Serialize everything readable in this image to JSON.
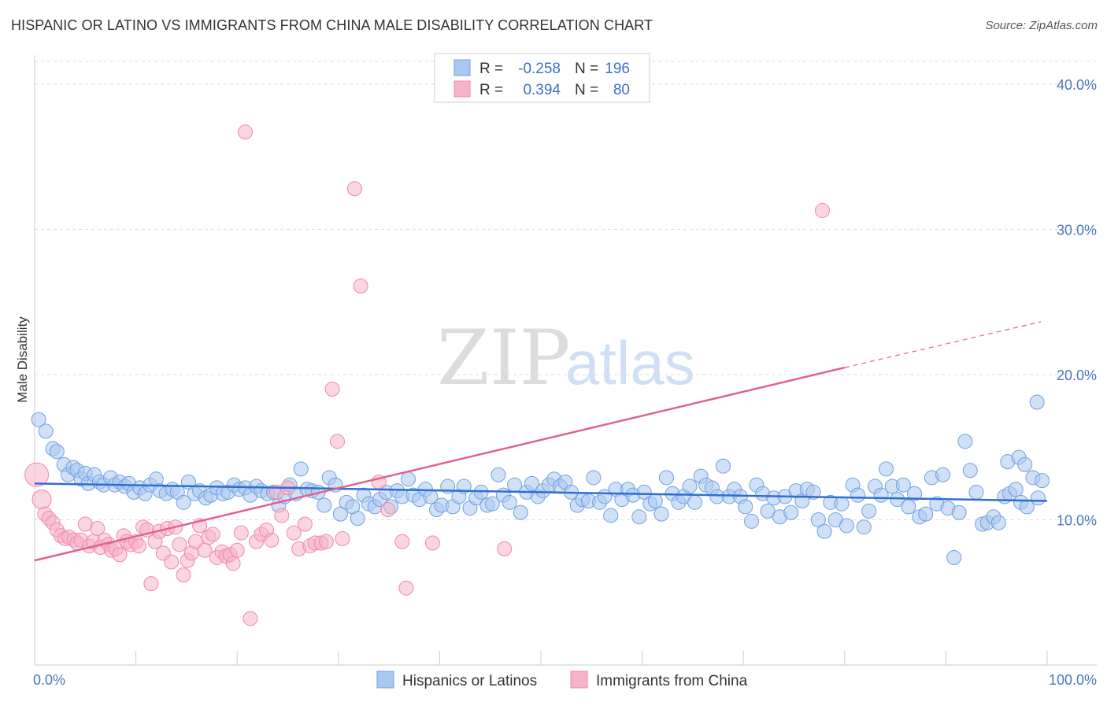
{
  "header": {
    "title": "HISPANIC OR LATINO VS IMMIGRANTS FROM CHINA MALE DISABILITY CORRELATION CHART",
    "source": "Source: ZipAtlas.com"
  },
  "watermark": {
    "zip": "ZIP",
    "atlas": "atlas"
  },
  "colors": {
    "blue": "#a9c8f0",
    "blue_edge": "#6f9fe0",
    "blue_line": "#2f6fd0",
    "pink": "#f7b3c8",
    "pink_edge": "#ee8aa8",
    "pink_line": "#e0608f",
    "grid": "#dddddd",
    "tick_text": "#4a76c2"
  },
  "chart_data": {
    "type": "scatter",
    "ylabel": "Male Disability",
    "xlim": [
      0,
      100
    ],
    "ylim": [
      0,
      42
    ],
    "y_ticks": [
      {
        "value": 10,
        "label": "10.0%"
      },
      {
        "value": 20,
        "label": "20.0%"
      },
      {
        "value": 30,
        "label": "30.0%"
      },
      {
        "value": 40,
        "label": "40.0%"
      }
    ],
    "x_tick_labels": [
      {
        "value": 0,
        "label": "0.0%"
      },
      {
        "value": 100,
        "label": "100.0%"
      }
    ],
    "x_minor_ticks": [
      0,
      10,
      20,
      30,
      40,
      50,
      60,
      70,
      80,
      90,
      100
    ],
    "legend": {
      "placement": "top-center",
      "rows": [
        {
          "r_label": "R =",
          "r_value": "-0.258",
          "n_label": "N =",
          "n_value": "196"
        },
        {
          "r_label": "R =",
          "r_value": "0.394",
          "n_label": "N =",
          "n_value": "80"
        }
      ]
    },
    "series": [
      {
        "name": "Hispanics or Latinos",
        "color": "blue",
        "trend": {
          "x1": 0,
          "y1": 12.5,
          "x2": 100,
          "y2": 11.3,
          "dashed_from": null
        },
        "points": [
          [
            0.4,
            16.9
          ],
          [
            1.1,
            16.1
          ],
          [
            1.8,
            14.9
          ],
          [
            2.2,
            14.7
          ],
          [
            2.9,
            13.8
          ],
          [
            3.3,
            13.1
          ],
          [
            3.8,
            13.6
          ],
          [
            4.2,
            13.4
          ],
          [
            4.6,
            12.8
          ],
          [
            5.0,
            13.2
          ],
          [
            5.3,
            12.5
          ],
          [
            5.9,
            13.1
          ],
          [
            6.4,
            12.6
          ],
          [
            6.8,
            12.4
          ],
          [
            7.5,
            12.9
          ],
          [
            7.9,
            12.4
          ],
          [
            8.4,
            12.6
          ],
          [
            8.9,
            12.3
          ],
          [
            9.3,
            12.5
          ],
          [
            9.8,
            11.9
          ],
          [
            10.4,
            12.2
          ],
          [
            10.9,
            11.8
          ],
          [
            11.4,
            12.4
          ],
          [
            12.0,
            12.8
          ],
          [
            12.4,
            12.0
          ],
          [
            13.0,
            11.8
          ],
          [
            13.6,
            12.1
          ],
          [
            14.1,
            11.9
          ],
          [
            14.7,
            11.2
          ],
          [
            15.2,
            12.6
          ],
          [
            15.8,
            11.8
          ],
          [
            16.3,
            12.0
          ],
          [
            16.9,
            11.5
          ],
          [
            17.4,
            11.7
          ],
          [
            18.0,
            12.2
          ],
          [
            18.6,
            11.8
          ],
          [
            19.1,
            11.9
          ],
          [
            19.7,
            12.4
          ],
          [
            20.2,
            12.1
          ],
          [
            20.8,
            12.2
          ],
          [
            21.3,
            11.7
          ],
          [
            21.9,
            12.3
          ],
          [
            22.4,
            12.0
          ],
          [
            23.0,
            11.8
          ],
          [
            23.6,
            11.9
          ],
          [
            24.1,
            11.0
          ],
          [
            24.7,
            11.6
          ],
          [
            25.2,
            12.4
          ],
          [
            25.8,
            11.8
          ],
          [
            26.3,
            13.5
          ],
          [
            26.9,
            12.1
          ],
          [
            27.4,
            12.0
          ],
          [
            28.0,
            11.9
          ],
          [
            28.6,
            11.0
          ],
          [
            29.1,
            12.9
          ],
          [
            29.7,
            12.4
          ],
          [
            30.2,
            10.4
          ],
          [
            30.8,
            11.2
          ],
          [
            31.4,
            10.9
          ],
          [
            31.9,
            10.1
          ],
          [
            32.5,
            11.7
          ],
          [
            33.0,
            11.1
          ],
          [
            33.6,
            10.9
          ],
          [
            34.1,
            11.4
          ],
          [
            34.7,
            11.9
          ],
          [
            35.2,
            10.9
          ],
          [
            35.8,
            12.0
          ],
          [
            36.3,
            11.6
          ],
          [
            36.9,
            12.8
          ],
          [
            37.4,
            11.7
          ],
          [
            38.0,
            11.4
          ],
          [
            38.6,
            12.1
          ],
          [
            39.1,
            11.6
          ],
          [
            39.7,
            10.7
          ],
          [
            40.2,
            11.0
          ],
          [
            40.8,
            12.3
          ],
          [
            41.3,
            10.9
          ],
          [
            41.9,
            11.6
          ],
          [
            42.4,
            12.3
          ],
          [
            43.0,
            10.8
          ],
          [
            43.6,
            11.5
          ],
          [
            44.1,
            11.9
          ],
          [
            44.7,
            11.0
          ],
          [
            45.2,
            11.1
          ],
          [
            45.8,
            13.1
          ],
          [
            46.3,
            11.7
          ],
          [
            46.9,
            11.2
          ],
          [
            47.4,
            12.4
          ],
          [
            48.0,
            10.5
          ],
          [
            48.6,
            11.9
          ],
          [
            49.1,
            12.5
          ],
          [
            49.7,
            11.6
          ],
          [
            50.2,
            12.0
          ],
          [
            50.8,
            12.4
          ],
          [
            51.3,
            12.8
          ],
          [
            51.9,
            12.3
          ],
          [
            52.4,
            12.6
          ],
          [
            53.0,
            11.9
          ],
          [
            53.6,
            11.0
          ],
          [
            54.1,
            11.4
          ],
          [
            54.7,
            11.3
          ],
          [
            55.2,
            12.9
          ],
          [
            55.8,
            11.2
          ],
          [
            56.3,
            11.6
          ],
          [
            56.9,
            10.3
          ],
          [
            57.4,
            12.1
          ],
          [
            58.0,
            11.4
          ],
          [
            58.6,
            12.1
          ],
          [
            59.1,
            11.7
          ],
          [
            59.7,
            10.2
          ],
          [
            60.2,
            11.9
          ],
          [
            60.8,
            11.1
          ],
          [
            61.3,
            11.3
          ],
          [
            61.9,
            10.4
          ],
          [
            62.4,
            12.9
          ],
          [
            63.0,
            11.8
          ],
          [
            63.6,
            11.2
          ],
          [
            64.1,
            11.6
          ],
          [
            64.7,
            12.3
          ],
          [
            65.2,
            11.2
          ],
          [
            65.8,
            13.0
          ],
          [
            66.3,
            12.4
          ],
          [
            66.9,
            12.2
          ],
          [
            67.4,
            11.6
          ],
          [
            68.0,
            13.7
          ],
          [
            68.6,
            11.6
          ],
          [
            69.1,
            12.1
          ],
          [
            69.7,
            11.6
          ],
          [
            70.2,
            10.9
          ],
          [
            70.8,
            9.9
          ],
          [
            71.3,
            12.4
          ],
          [
            71.9,
            11.8
          ],
          [
            72.4,
            10.6
          ],
          [
            73.0,
            11.5
          ],
          [
            73.6,
            10.2
          ],
          [
            74.1,
            11.6
          ],
          [
            74.7,
            10.5
          ],
          [
            75.2,
            12.0
          ],
          [
            75.8,
            11.3
          ],
          [
            76.3,
            12.1
          ],
          [
            76.9,
            11.9
          ],
          [
            77.4,
            10.0
          ],
          [
            78.0,
            9.2
          ],
          [
            78.6,
            11.2
          ],
          [
            79.1,
            10.0
          ],
          [
            79.7,
            11.1
          ],
          [
            80.2,
            9.6
          ],
          [
            80.8,
            12.4
          ],
          [
            81.3,
            11.7
          ],
          [
            81.9,
            9.5
          ],
          [
            82.4,
            10.6
          ],
          [
            83.0,
            12.3
          ],
          [
            83.6,
            11.7
          ],
          [
            84.1,
            13.5
          ],
          [
            84.7,
            12.3
          ],
          [
            85.2,
            11.4
          ],
          [
            85.8,
            12.4
          ],
          [
            86.3,
            10.9
          ],
          [
            86.9,
            11.8
          ],
          [
            87.4,
            10.2
          ],
          [
            88.0,
            10.4
          ],
          [
            88.6,
            12.9
          ],
          [
            89.1,
            11.1
          ],
          [
            89.7,
            13.1
          ],
          [
            90.2,
            10.8
          ],
          [
            90.8,
            7.4
          ],
          [
            91.3,
            10.5
          ],
          [
            91.9,
            15.4
          ],
          [
            92.4,
            13.4
          ],
          [
            93.0,
            11.9
          ],
          [
            93.6,
            9.7
          ],
          [
            94.1,
            9.8
          ],
          [
            94.7,
            10.2
          ],
          [
            95.2,
            9.8
          ],
          [
            95.8,
            11.6
          ],
          [
            96.3,
            11.8
          ],
          [
            96.9,
            12.1
          ],
          [
            97.4,
            11.2
          ],
          [
            98.0,
            10.9
          ],
          [
            98.6,
            12.9
          ],
          [
            99.1,
            11.5
          ],
          [
            99.5,
            12.7
          ],
          [
            96.1,
            14.0
          ],
          [
            97.2,
            14.3
          ],
          [
            97.8,
            13.8
          ],
          [
            99.0,
            18.1
          ]
        ]
      },
      {
        "name": "Immigrants from China",
        "color": "pink",
        "trend": {
          "x1": 0,
          "y1": 7.2,
          "x2": 100,
          "y2": 23.8,
          "dashed_from": 80
        },
        "points": [
          [
            0.2,
            13.1
          ],
          [
            0.7,
            11.4
          ],
          [
            1.0,
            10.4
          ],
          [
            1.4,
            10.1
          ],
          [
            1.8,
            9.8
          ],
          [
            2.2,
            9.3
          ],
          [
            2.6,
            8.9
          ],
          [
            3.0,
            8.7
          ],
          [
            3.4,
            8.8
          ],
          [
            3.9,
            8.6
          ],
          [
            4.2,
            8.4
          ],
          [
            4.6,
            8.6
          ],
          [
            5.0,
            9.7
          ],
          [
            5.4,
            8.2
          ],
          [
            5.8,
            8.5
          ],
          [
            6.2,
            9.4
          ],
          [
            6.5,
            8.1
          ],
          [
            6.9,
            8.6
          ],
          [
            7.3,
            8.3
          ],
          [
            7.6,
            7.9
          ],
          [
            8.0,
            8.0
          ],
          [
            8.4,
            7.6
          ],
          [
            8.8,
            8.9
          ],
          [
            9.1,
            8.5
          ],
          [
            9.5,
            8.3
          ],
          [
            10.0,
            8.5
          ],
          [
            10.3,
            8.2
          ],
          [
            10.7,
            9.5
          ],
          [
            11.1,
            9.3
          ],
          [
            11.5,
            5.6
          ],
          [
            11.9,
            8.5
          ],
          [
            12.3,
            9.2
          ],
          [
            12.7,
            7.7
          ],
          [
            13.1,
            9.4
          ],
          [
            13.5,
            7.1
          ],
          [
            13.9,
            9.5
          ],
          [
            14.3,
            8.3
          ],
          [
            14.7,
            6.2
          ],
          [
            15.1,
            7.2
          ],
          [
            15.5,
            7.7
          ],
          [
            15.9,
            8.5
          ],
          [
            16.3,
            9.6
          ],
          [
            16.8,
            7.9
          ],
          [
            17.2,
            8.8
          ],
          [
            17.6,
            9.0
          ],
          [
            18.0,
            7.4
          ],
          [
            18.5,
            7.8
          ],
          [
            18.9,
            7.5
          ],
          [
            19.3,
            7.6
          ],
          [
            19.6,
            7.0
          ],
          [
            20.0,
            7.9
          ],
          [
            20.4,
            9.1
          ],
          [
            20.8,
            36.7
          ],
          [
            21.3,
            3.2
          ],
          [
            21.9,
            8.5
          ],
          [
            22.4,
            9.0
          ],
          [
            22.9,
            9.3
          ],
          [
            23.4,
            8.6
          ],
          [
            23.9,
            11.9
          ],
          [
            24.4,
            10.3
          ],
          [
            25.0,
            12.2
          ],
          [
            25.6,
            9.1
          ],
          [
            26.1,
            8.0
          ],
          [
            26.7,
            9.7
          ],
          [
            27.2,
            8.2
          ],
          [
            27.7,
            8.4
          ],
          [
            28.3,
            8.4
          ],
          [
            28.8,
            8.5
          ],
          [
            29.4,
            19.0
          ],
          [
            29.9,
            15.4
          ],
          [
            30.4,
            8.7
          ],
          [
            31.6,
            32.8
          ],
          [
            32.2,
            26.1
          ],
          [
            34.0,
            12.6
          ],
          [
            34.9,
            10.7
          ],
          [
            36.3,
            8.5
          ],
          [
            36.7,
            5.3
          ],
          [
            39.3,
            8.4
          ],
          [
            46.4,
            8.0
          ],
          [
            77.8,
            31.3
          ]
        ]
      }
    ]
  }
}
